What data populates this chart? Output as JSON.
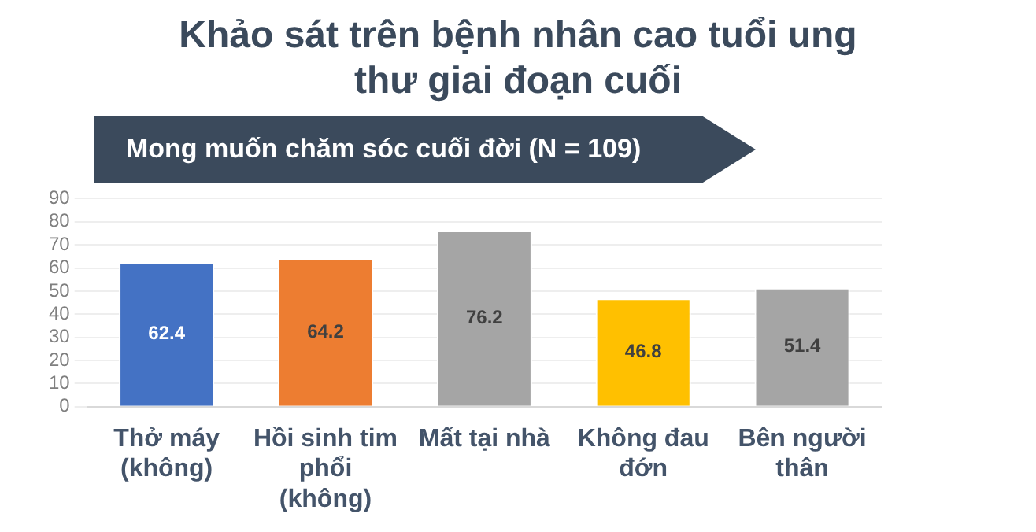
{
  "chart_data": {
    "type": "bar",
    "title": "Khảo sát trên bệnh nhân cao tuổi ung thư giai đoạn cuối",
    "subtitle": "Mong muốn chăm sóc cuối đời (N = 109)",
    "categories": [
      "Thở máy (không)",
      "Hồi sinh tim phổi (không)",
      "Mất tại nhà",
      "Không đau đớn",
      "Bên người thân"
    ],
    "values": [
      62.4,
      64.2,
      76.2,
      46.8,
      51.4
    ],
    "colors": [
      "#4472c4",
      "#ed7d31",
      "#a5a5a5",
      "#ffc000",
      "#a5a5a5"
    ],
    "ylim": [
      0,
      90
    ],
    "yticks": [
      0,
      10,
      20,
      30,
      40,
      50,
      60,
      70,
      80,
      90
    ],
    "grid": "y",
    "data_labels": true,
    "legend": false
  }
}
